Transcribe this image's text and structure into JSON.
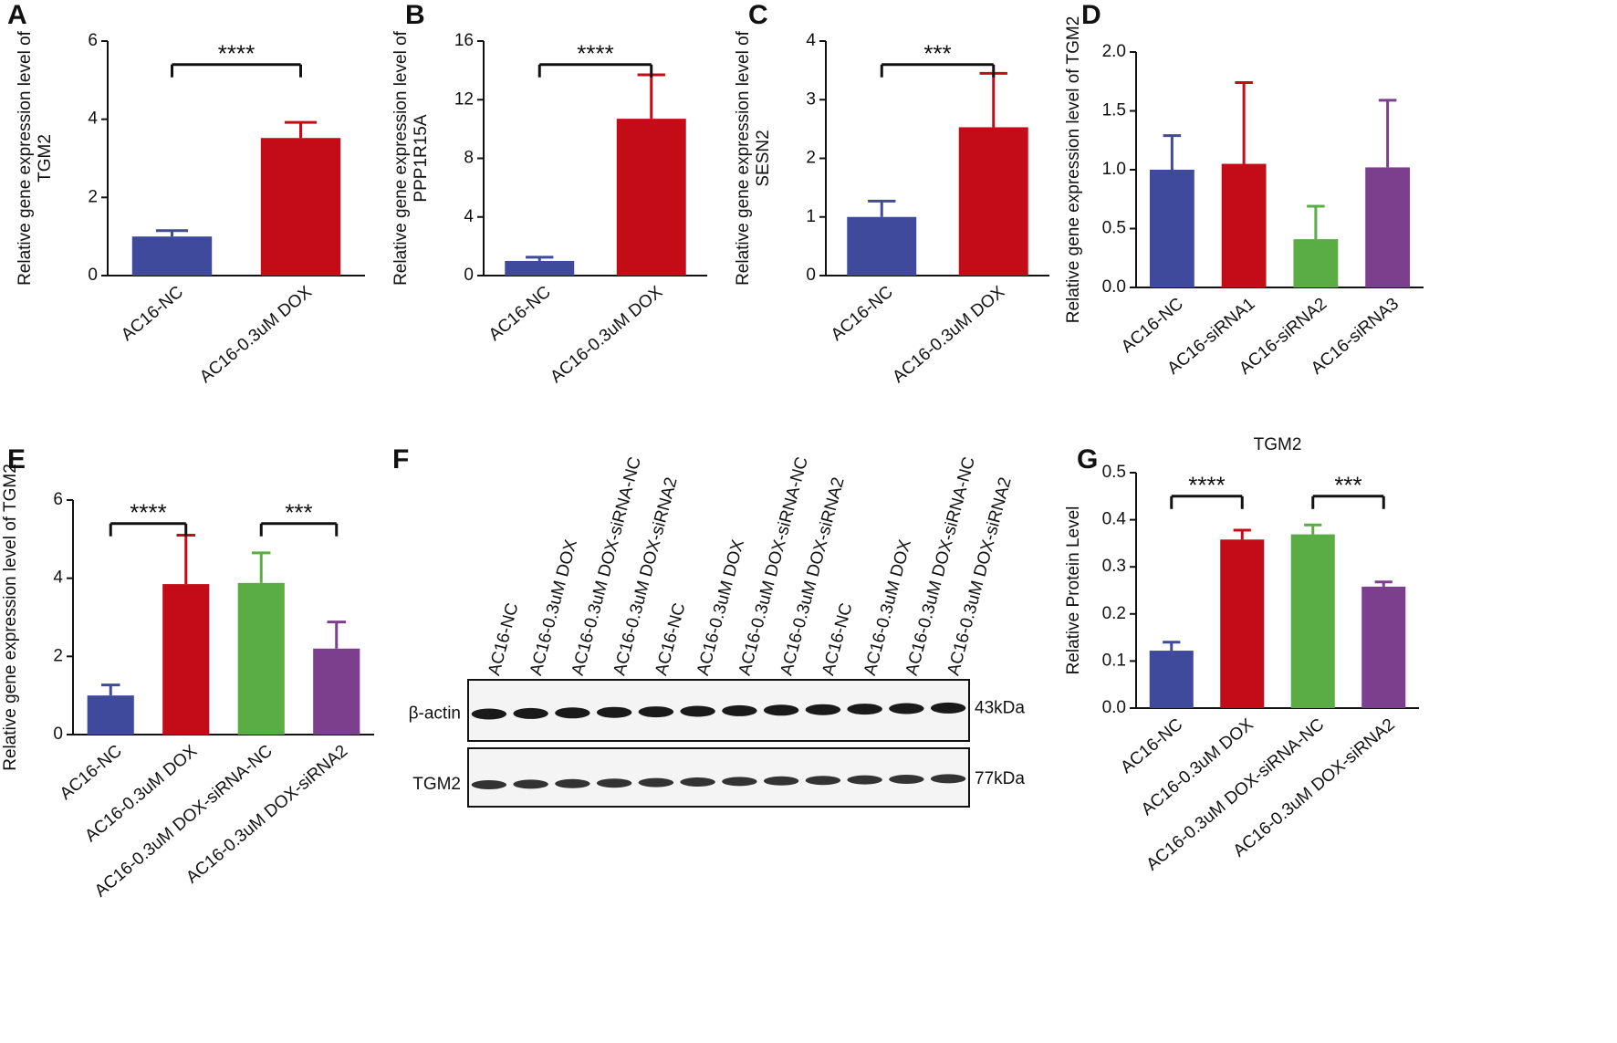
{
  "chart_data": [
    {
      "type": "bar",
      "panel": "A",
      "ylabel": [
        "Relative gene expression level of",
        "TGM2"
      ],
      "categories": [
        "AC16-NC",
        "AC16-0.3uM DOX"
      ],
      "values": [
        1.0,
        3.52
      ],
      "errors": [
        0.15,
        0.4
      ],
      "colors": [
        "#3f4a9c",
        "#c40c18"
      ],
      "ylim": [
        0,
        6
      ],
      "yticks": [
        0,
        2,
        4,
        6
      ],
      "significance": [
        {
          "label": "****",
          "between": [
            "AC16-NC",
            "AC16-0.3uM DOX"
          ]
        }
      ]
    },
    {
      "type": "bar",
      "panel": "B",
      "ylabel": [
        "Relative gene expression level of",
        "PPP1R15A"
      ],
      "categories": [
        "AC16-NC",
        "AC16-0.3uM DOX"
      ],
      "values": [
        1.0,
        10.7
      ],
      "errors": [
        0.25,
        3.0
      ],
      "colors": [
        "#3f4a9c",
        "#c40c18"
      ],
      "ylim": [
        0,
        16
      ],
      "yticks": [
        0,
        4,
        8,
        12,
        16
      ],
      "significance": [
        {
          "label": "****",
          "between": [
            "AC16-NC",
            "AC16-0.3uM DOX"
          ]
        }
      ]
    },
    {
      "type": "bar",
      "panel": "C",
      "ylabel": [
        "Relative gene expression level of",
        "SESN2"
      ],
      "categories": [
        "AC16-NC",
        "AC16-0.3uM DOX"
      ],
      "values": [
        1.0,
        2.53
      ],
      "errors": [
        0.27,
        0.92
      ],
      "colors": [
        "#3f4a9c",
        "#c40c18"
      ],
      "ylim": [
        0,
        4
      ],
      "yticks": [
        0,
        1,
        2,
        3,
        4
      ],
      "significance": [
        {
          "label": "***",
          "between": [
            "AC16-NC",
            "AC16-0.3uM DOX"
          ]
        }
      ]
    },
    {
      "type": "bar",
      "panel": "D",
      "ylabel": [
        "Relative gene expression level of TGM2"
      ],
      "categories": [
        "AC16-NC",
        "AC16-siRNA1",
        "AC16-siRNA2",
        "AC16-siRNA3"
      ],
      "values": [
        1.0,
        1.05,
        0.41,
        1.02
      ],
      "errors": [
        0.29,
        0.69,
        0.28,
        0.57
      ],
      "colors": [
        "#3f4a9c",
        "#c40c18",
        "#5aac44",
        "#7b3f8e"
      ],
      "ylim": [
        0,
        2
      ],
      "yticks": [
        {
          "value": 0,
          "label": "0.0"
        },
        0.5,
        {
          "value": 1,
          "label": "1.0"
        },
        1.5,
        {
          "value": 2,
          "label": "2.0"
        }
      ],
      "significance": []
    },
    {
      "type": "bar",
      "panel": "E",
      "ylabel": [
        "Relative gene expression level of TGM2"
      ],
      "categories": [
        "AC16-NC",
        "AC16-0.3uM DOX",
        "AC16-0.3uM DOX-siRNA-NC",
        "AC16-0.3uM DOX-siRNA2"
      ],
      "values": [
        1.0,
        3.85,
        3.88,
        2.2
      ],
      "errors": [
        0.27,
        1.25,
        0.77,
        0.68
      ],
      "colors": [
        "#3f4a9c",
        "#c40c18",
        "#5aac44",
        "#7b3f8e"
      ],
      "ylim": [
        0,
        6
      ],
      "yticks": [
        0,
        2,
        4,
        6
      ],
      "significance": [
        {
          "label": "****",
          "between": [
            "AC16-NC",
            "AC16-0.3uM DOX"
          ]
        },
        {
          "label": "***",
          "between": [
            "AC16-0.3uM DOX-siRNA-NC",
            "AC16-0.3uM DOX-siRNA2"
          ]
        }
      ]
    },
    {
      "type": "bar",
      "panel": "G",
      "title": "TGM2",
      "ylabel": [
        "Relative Protein Level"
      ],
      "categories": [
        "AC16-NC",
        "AC16-0.3uM DOX",
        "AC16-0.3uM DOX-siRNA-NC",
        "AC16-0.3uM DOX-siRNA2"
      ],
      "values": [
        0.122,
        0.358,
        0.369,
        0.258
      ],
      "errors": [
        0.018,
        0.02,
        0.02,
        0.01
      ],
      "colors": [
        "#3f4a9c",
        "#c40c18",
        "#5aac44",
        "#7b3f8e"
      ],
      "ylim": [
        0,
        0.5
      ],
      "yticks": [
        {
          "value": 0,
          "label": "0.0"
        },
        0.1,
        0.2,
        0.3,
        0.4,
        0.5
      ],
      "significance": [
        {
          "label": "****",
          "between": [
            "AC16-NC",
            "AC16-0.3uM DOX"
          ]
        },
        {
          "label": "***",
          "between": [
            "AC16-0.3uM DOX-siRNA-NC",
            "AC16-0.3uM DOX-siRNA2"
          ]
        }
      ]
    }
  ],
  "blot": {
    "panel": "F",
    "lanes": [
      "AC16-NC",
      "AC16-0.3uM DOX",
      "AC16-0.3uM DOX-siRNA-NC",
      "AC16-0.3uM DOX-siRNA2",
      "AC16-NC",
      "AC16-0.3uM DOX",
      "AC16-0.3uM DOX-siRNA-NC",
      "AC16-0.3uM DOX-siRNA2",
      "AC16-NC",
      "AC16-0.3uM DOX",
      "AC16-0.3uM DOX-siRNA-NC",
      "AC16-0.3uM DOX-siRNA2"
    ],
    "rows": [
      {
        "name": "β-actin",
        "size": "43kDa"
      },
      {
        "name": "TGM2",
        "size": "77kDa"
      }
    ]
  }
}
